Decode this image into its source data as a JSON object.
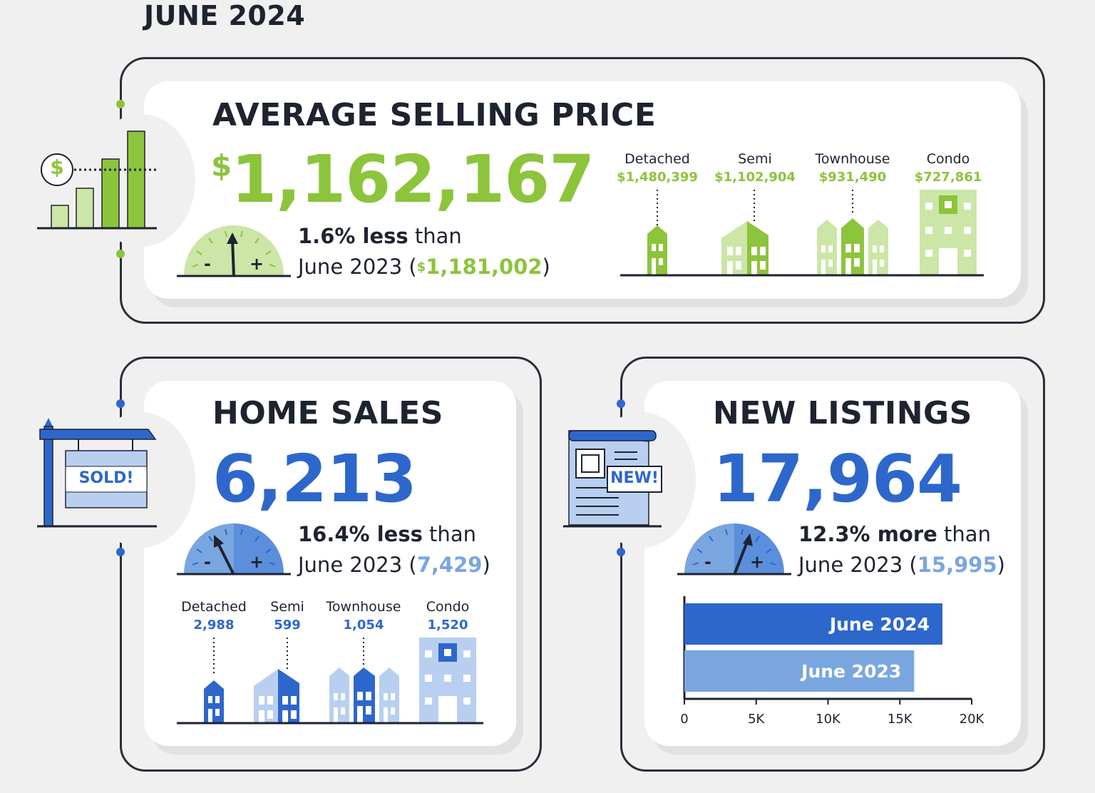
{
  "header": {
    "title": "JUNE 2024"
  },
  "colors": {
    "green": "#8cc43c",
    "light_green": "#cbe6a6",
    "blue": "#2e67cc",
    "light_blue": "#7aa6e0",
    "pale_blue": "#b8cff0",
    "dark": "#1e2330"
  },
  "price": {
    "title": "AVERAGE SELLING PRICE",
    "symbol": "$",
    "value": "1,162,167",
    "change": "1.6% less",
    "than": " than",
    "prev_label": "June 2023 (",
    "prev_symbol": "$",
    "prev_value": "1,181,002",
    "prev_close": ")",
    "gauge_minus": "-",
    "gauge_plus": "+",
    "icon_symbol": "$",
    "types": [
      {
        "label": "Detached",
        "value": "$1,480,399"
      },
      {
        "label": "Semi",
        "value": "$1,102,904"
      },
      {
        "label": "Townhouse",
        "value": "$931,490"
      },
      {
        "label": "Condo",
        "value": "$727,861"
      }
    ]
  },
  "sales": {
    "title": "HOME SALES",
    "value": "6,213",
    "change": "16.4% less",
    "than": " than",
    "prev_label": "June 2023 (",
    "prev_value": "7,429",
    "prev_close": ")",
    "sign_text": "SOLD!",
    "gauge_minus": "-",
    "gauge_plus": "+",
    "types": [
      {
        "label": "Detached",
        "value": "2,988"
      },
      {
        "label": "Semi",
        "value": "599"
      },
      {
        "label": "Townhouse",
        "value": "1,054"
      },
      {
        "label": "Condo",
        "value": "1,520"
      }
    ]
  },
  "listings": {
    "title": "NEW LISTINGS",
    "value": "17,964",
    "change": "12.3% more",
    "than": " than",
    "prev_label": "June 2023 (",
    "prev_value": "15,995",
    "prev_close": ")",
    "badge_text": "NEW!",
    "gauge_minus": "-",
    "gauge_plus": "+"
  },
  "chart_data": {
    "type": "bar",
    "orientation": "horizontal",
    "categories": [
      "June 2024",
      "June 2023"
    ],
    "values": [
      17964,
      15995
    ],
    "xlim": [
      0,
      20000
    ],
    "ticks": [
      "0",
      "5K",
      "10K",
      "15K",
      "20K"
    ],
    "tick_values": [
      0,
      5000,
      10000,
      15000,
      20000
    ],
    "colors": [
      "#2e67cc",
      "#7aa6e0"
    ],
    "grid": false
  }
}
